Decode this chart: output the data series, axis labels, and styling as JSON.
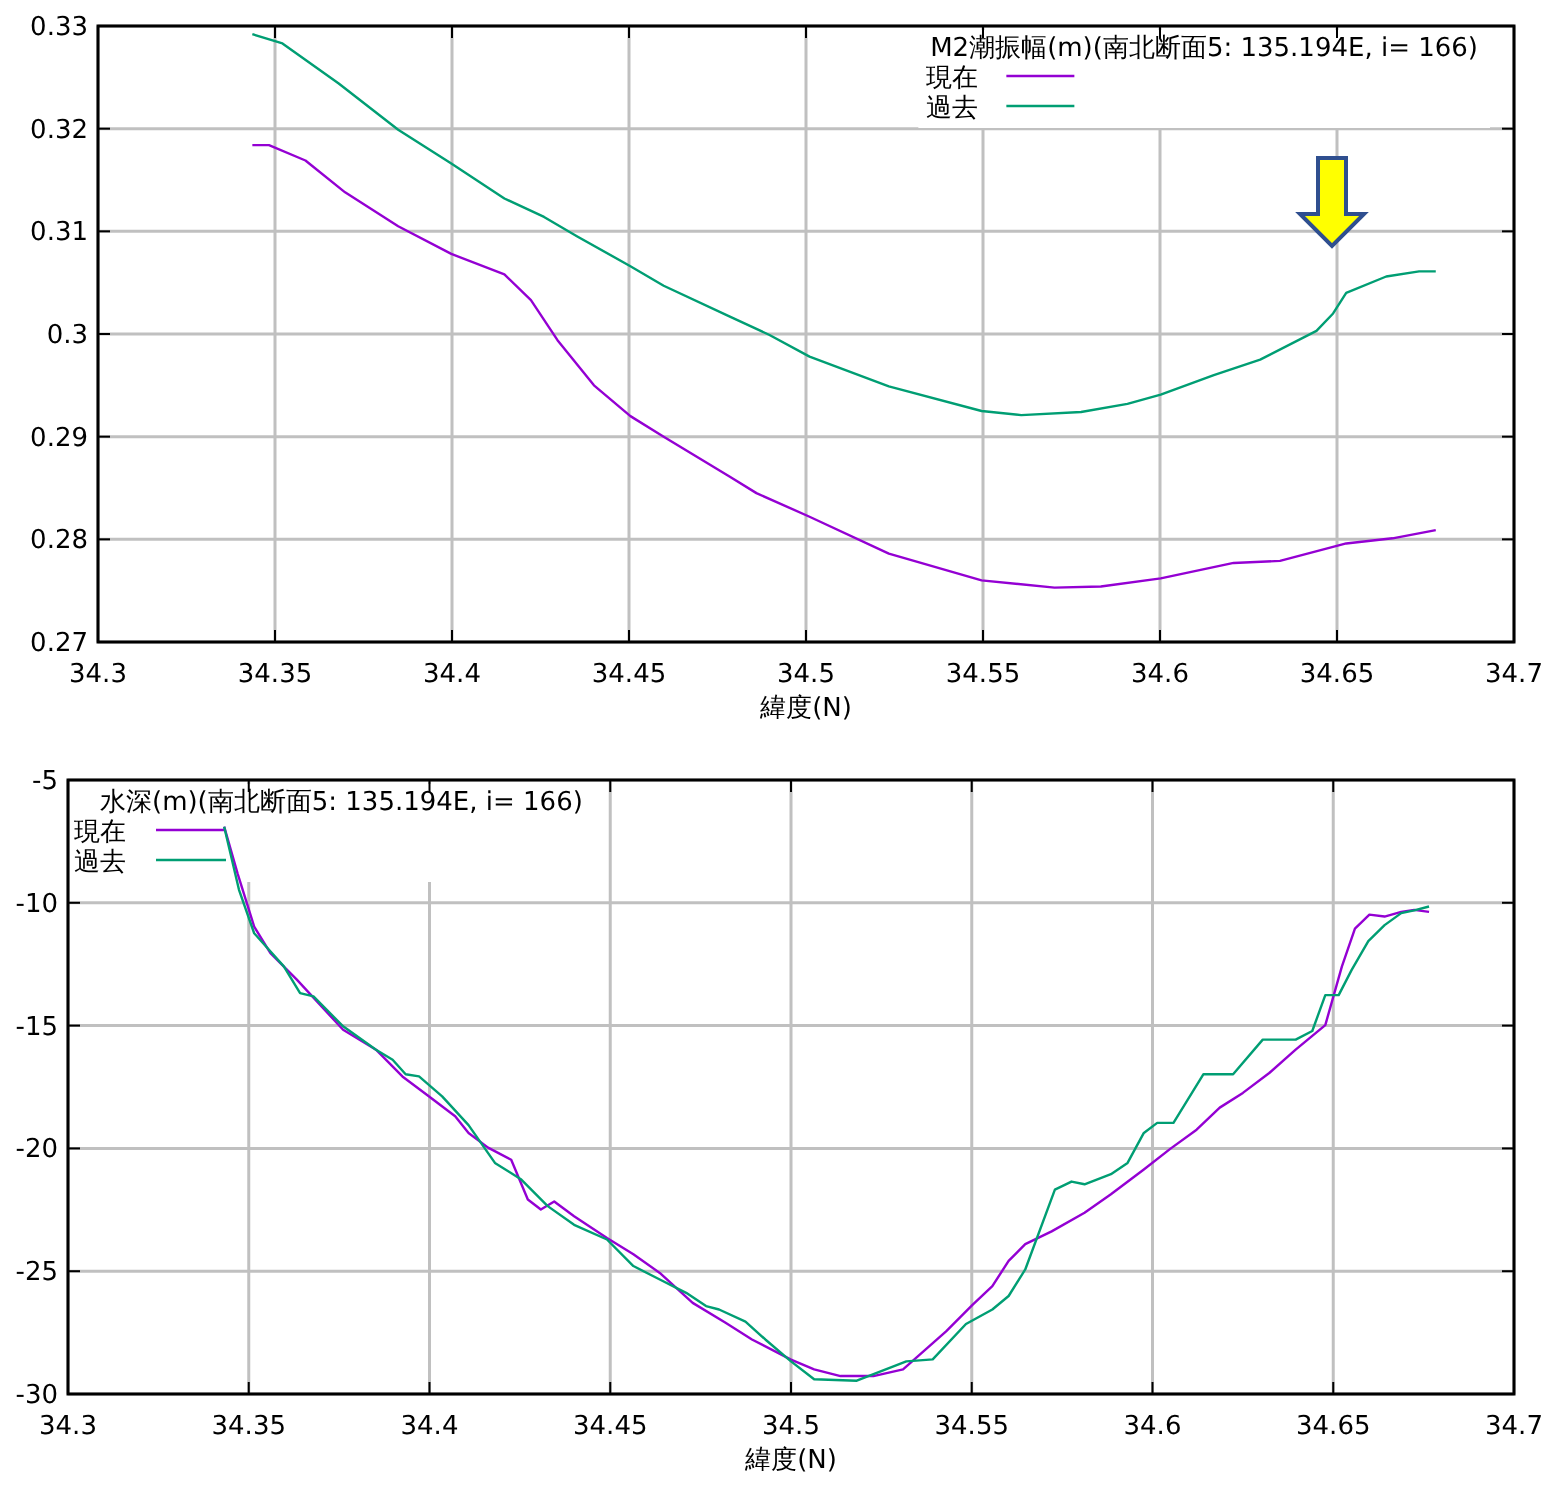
{
  "chart_data": [
    {
      "type": "line",
      "title": "M2潮振幅(m)(南北断面5: 135.194E, i= 166)",
      "xlabel": "緯度(N)",
      "xlim": [
        34.3,
        34.7
      ],
      "xticks": [
        34.3,
        34.35,
        34.4,
        34.45,
        34.5,
        34.55,
        34.6,
        34.65,
        34.7
      ],
      "ylim": [
        0.27,
        0.33
      ],
      "yticks": [
        0.27,
        0.28,
        0.29,
        0.3,
        0.31,
        0.32,
        0.33
      ],
      "grid": true,
      "legend": "top right",
      "line_style": "solid",
      "series": [
        {
          "name": "現在",
          "color": "#9400d3",
          "x": [
            34.3436,
            34.3483,
            34.3586,
            34.3698,
            34.3848,
            34.3998,
            34.4148,
            34.4223,
            34.4298,
            34.4401,
            34.4504,
            34.4598,
            34.4785,
            34.486,
            34.501,
            34.5234,
            34.5496,
            34.5702,
            34.5833,
            34.6002,
            34.6208,
            34.6339,
            34.6526,
            34.6657,
            34.6779
          ],
          "values": [
            0.3184,
            0.3184,
            0.3169,
            0.3138,
            0.3105,
            0.3078,
            0.3058,
            0.3033,
            0.2994,
            0.295,
            0.292,
            0.29,
            0.2861,
            0.2845,
            0.2822,
            0.2786,
            0.276,
            0.2753,
            0.2754,
            0.2762,
            0.2777,
            0.2779,
            0.2796,
            0.2801,
            0.2809
          ]
        },
        {
          "name": "過去",
          "color": "#009e73",
          "x": [
            34.3436,
            34.3521,
            34.368,
            34.3848,
            34.3998,
            34.4148,
            34.426,
            34.4354,
            34.4504,
            34.4598,
            34.4785,
            34.4897,
            34.501,
            34.5234,
            34.5496,
            34.5608,
            34.5777,
            34.5908,
            34.6002,
            34.6152,
            34.6283,
            34.6442,
            34.6489,
            34.6526,
            34.6639,
            34.6732,
            34.6779
          ],
          "values": [
            0.3292,
            0.3283,
            0.3244,
            0.3199,
            0.3166,
            0.3132,
            0.3114,
            0.3095,
            0.3066,
            0.3047,
            0.3017,
            0.2999,
            0.2978,
            0.2949,
            0.2925,
            0.2921,
            0.2924,
            0.2932,
            0.2941,
            0.296,
            0.2975,
            0.3003,
            0.302,
            0.304,
            0.3056,
            0.3061,
            0.3061
          ]
        }
      ]
    },
    {
      "type": "line",
      "title": "水深(m)(南北断面5: 135.194E, i= 166)",
      "xlabel": "緯度(N)",
      "xlim": [
        34.3,
        34.7
      ],
      "xticks": [
        34.3,
        34.35,
        34.4,
        34.45,
        34.5,
        34.55,
        34.6,
        34.65,
        34.7
      ],
      "ylim": [
        -30,
        -5
      ],
      "yticks": [
        -30,
        -25,
        -20,
        -15,
        -10,
        -5
      ],
      "grid": true,
      "legend": "top left",
      "line_style": "solid",
      "series": [
        {
          "name": "現在",
          "color": "#9400d3",
          "x": [
            34.3432,
            34.3469,
            34.3515,
            34.356,
            34.3633,
            34.3761,
            34.3852,
            34.3925,
            34.3998,
            34.4071,
            34.4108,
            34.4162,
            34.4226,
            34.4272,
            34.4308,
            34.4345,
            34.44,
            34.4491,
            34.4564,
            34.4637,
            34.4728,
            34.4819,
            34.4892,
            34.5,
            34.5064,
            34.5137,
            34.5228,
            34.531,
            34.5429,
            34.5502,
            34.5557,
            34.5602,
            34.5648,
            34.5721,
            34.5812,
            34.5885,
            34.5976,
            34.6049,
            34.6122,
            34.6186,
            34.625,
            34.6323,
            34.6396,
            34.6478,
            34.6524,
            34.656,
            34.66,
            34.6642,
            34.6688,
            34.6724,
            34.6765
          ],
          "values": [
            -6.9,
            -8.8,
            -10.97,
            -12.05,
            -13.13,
            -15.17,
            -15.98,
            -17.07,
            -17.88,
            -18.69,
            -19.37,
            -19.97,
            -20.46,
            -22.08,
            -22.49,
            -22.16,
            -22.76,
            -23.65,
            -24.31,
            -25.07,
            -26.29,
            -27.1,
            -27.78,
            -28.6,
            -29.0,
            -29.27,
            -29.27,
            -29.0,
            -27.45,
            -26.37,
            -25.61,
            -24.58,
            -23.9,
            -23.38,
            -22.62,
            -21.87,
            -20.86,
            -20.02,
            -19.24,
            -18.34,
            -17.74,
            -16.93,
            -15.98,
            -14.98,
            -12.59,
            -11.05,
            -10.48,
            -10.56,
            -10.37,
            -10.29,
            -10.37
          ]
        },
        {
          "name": "過去",
          "color": "#009e73",
          "x": [
            34.3432,
            34.3473,
            34.3515,
            34.3597,
            34.3642,
            34.3679,
            34.3761,
            34.3852,
            34.3898,
            34.3934,
            34.3971,
            34.4035,
            34.4108,
            34.4181,
            34.4254,
            34.4327,
            34.44,
            34.4491,
            34.4564,
            34.4637,
            34.471,
            34.4765,
            34.4801,
            34.4874,
            34.4929,
            34.5,
            34.5064,
            34.5182,
            34.5319,
            34.5392,
            34.5484,
            34.5557,
            34.5602,
            34.5648,
            34.573,
            34.5776,
            34.5812,
            34.5885,
            34.5931,
            34.5976,
            34.6013,
            34.6058,
            34.6141,
            34.6223,
            34.6305,
            34.6396,
            34.6442,
            34.6478,
            34.6515,
            34.6551,
            34.6597,
            34.6642,
            34.6688,
            34.6724,
            34.6765
          ],
          "values": [
            -6.9,
            -9.47,
            -11.24,
            -12.59,
            -13.68,
            -13.81,
            -15.03,
            -15.98,
            -16.39,
            -16.98,
            -17.07,
            -17.88,
            -19.05,
            -20.59,
            -21.27,
            -22.35,
            -23.11,
            -23.71,
            -24.79,
            -25.34,
            -25.88,
            -26.42,
            -26.56,
            -27.05,
            -27.78,
            -28.67,
            -29.4,
            -29.46,
            -28.67,
            -28.59,
            -27.15,
            -26.56,
            -26.01,
            -24.93,
            -21.68,
            -21.35,
            -21.46,
            -21.05,
            -20.59,
            -19.37,
            -18.96,
            -18.96,
            -16.98,
            -16.98,
            -15.57,
            -15.57,
            -15.22,
            -13.76,
            -13.76,
            -12.73,
            -11.56,
            -10.91,
            -10.42,
            -10.31,
            -10.15
          ]
        }
      ]
    }
  ]
}
